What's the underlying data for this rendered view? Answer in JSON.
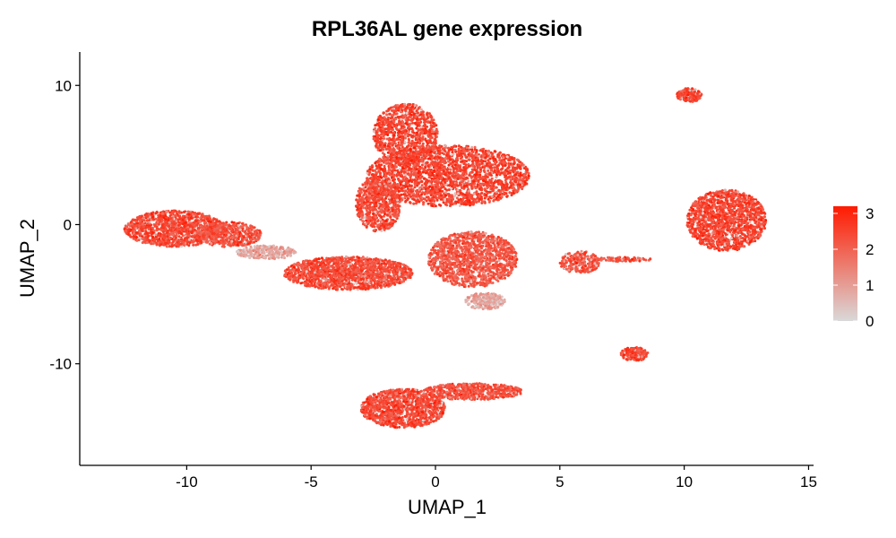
{
  "chart_data": {
    "type": "scatter",
    "title": "RPL36AL gene expression",
    "xlabel": "UMAP_1",
    "ylabel": "UMAP_2",
    "xlim": [
      -14.3,
      15.2
    ],
    "ylim": [
      -17.3,
      12.4
    ],
    "x_ticks": [
      -10,
      -5,
      0,
      5,
      10,
      15
    ],
    "x_tick_labels": [
      "-10",
      "-5",
      "0",
      "5",
      "10",
      "15"
    ],
    "y_ticks": [
      -10,
      0,
      10
    ],
    "y_tick_labels": [
      "-10",
      "0",
      "10"
    ],
    "grid": false,
    "legend": {
      "placement": "right",
      "type": "continuous colorbar",
      "range": [
        0,
        3.2
      ],
      "ticks": [
        0,
        1,
        2,
        3
      ],
      "tick_labels": [
        "0",
        "1",
        "2",
        "3"
      ],
      "color_low": "#d9d9d9",
      "color_high": "#ff1a00"
    },
    "point_color_typical": "#f4603e",
    "clusters": [
      {
        "id": "left-blob",
        "cx": -10.5,
        "cy": -0.3,
        "rx": 2.0,
        "ry": 1.3,
        "n": 1200,
        "mean_expr": 2.45
      },
      {
        "id": "left-blob-ext",
        "cx": -8.3,
        "cy": -0.7,
        "rx": 1.3,
        "ry": 0.9,
        "n": 500,
        "mean_expr": 2.3
      },
      {
        "id": "bridge-low",
        "cx": -6.8,
        "cy": -2.0,
        "rx": 1.2,
        "ry": 0.5,
        "n": 250,
        "mean_expr": 0.9
      },
      {
        "id": "lower-left-arm",
        "cx": -3.5,
        "cy": -3.5,
        "rx": 2.6,
        "ry": 1.2,
        "n": 1500,
        "mean_expr": 2.4
      },
      {
        "id": "top-center",
        "cx": -1.2,
        "cy": 6.5,
        "rx": 1.3,
        "ry": 2.2,
        "n": 900,
        "mean_expr": 2.5
      },
      {
        "id": "upper-center-main",
        "cx": 0.5,
        "cy": 3.5,
        "rx": 3.3,
        "ry": 2.2,
        "n": 3000,
        "mean_expr": 2.5
      },
      {
        "id": "center-left-column",
        "cx": -2.3,
        "cy": 1.5,
        "rx": 0.9,
        "ry": 2.0,
        "n": 700,
        "mean_expr": 2.4
      },
      {
        "id": "center-low",
        "cx": 1.5,
        "cy": -2.5,
        "rx": 1.8,
        "ry": 2.0,
        "n": 1300,
        "mean_expr": 2.2
      },
      {
        "id": "center-low-grey",
        "cx": 2.0,
        "cy": -5.5,
        "rx": 0.8,
        "ry": 0.6,
        "n": 250,
        "mean_expr": 0.9
      },
      {
        "id": "right-small-cluster",
        "cx": 5.8,
        "cy": -2.7,
        "rx": 0.8,
        "ry": 0.8,
        "n": 250,
        "mean_expr": 2.3
      },
      {
        "id": "right-streak",
        "cx": 7.5,
        "cy": -2.5,
        "rx": 1.2,
        "ry": 0.15,
        "n": 80,
        "mean_expr": 2.2
      },
      {
        "id": "top-right-small",
        "cx": 10.2,
        "cy": 9.3,
        "rx": 0.5,
        "ry": 0.5,
        "n": 180,
        "mean_expr": 2.5
      },
      {
        "id": "right-cluster",
        "cx": 11.7,
        "cy": 0.3,
        "rx": 1.6,
        "ry": 2.2,
        "n": 1400,
        "mean_expr": 2.5
      },
      {
        "id": "lower-right-small",
        "cx": 8.0,
        "cy": -9.3,
        "rx": 0.55,
        "ry": 0.5,
        "n": 200,
        "mean_expr": 2.5
      },
      {
        "id": "bottom-cluster",
        "cx": -1.3,
        "cy": -13.2,
        "rx": 1.7,
        "ry": 1.4,
        "n": 1100,
        "mean_expr": 2.45
      },
      {
        "id": "bottom-right-arm",
        "cx": 1.5,
        "cy": -12.0,
        "rx": 2.0,
        "ry": 0.6,
        "n": 500,
        "mean_expr": 2.3
      }
    ]
  }
}
